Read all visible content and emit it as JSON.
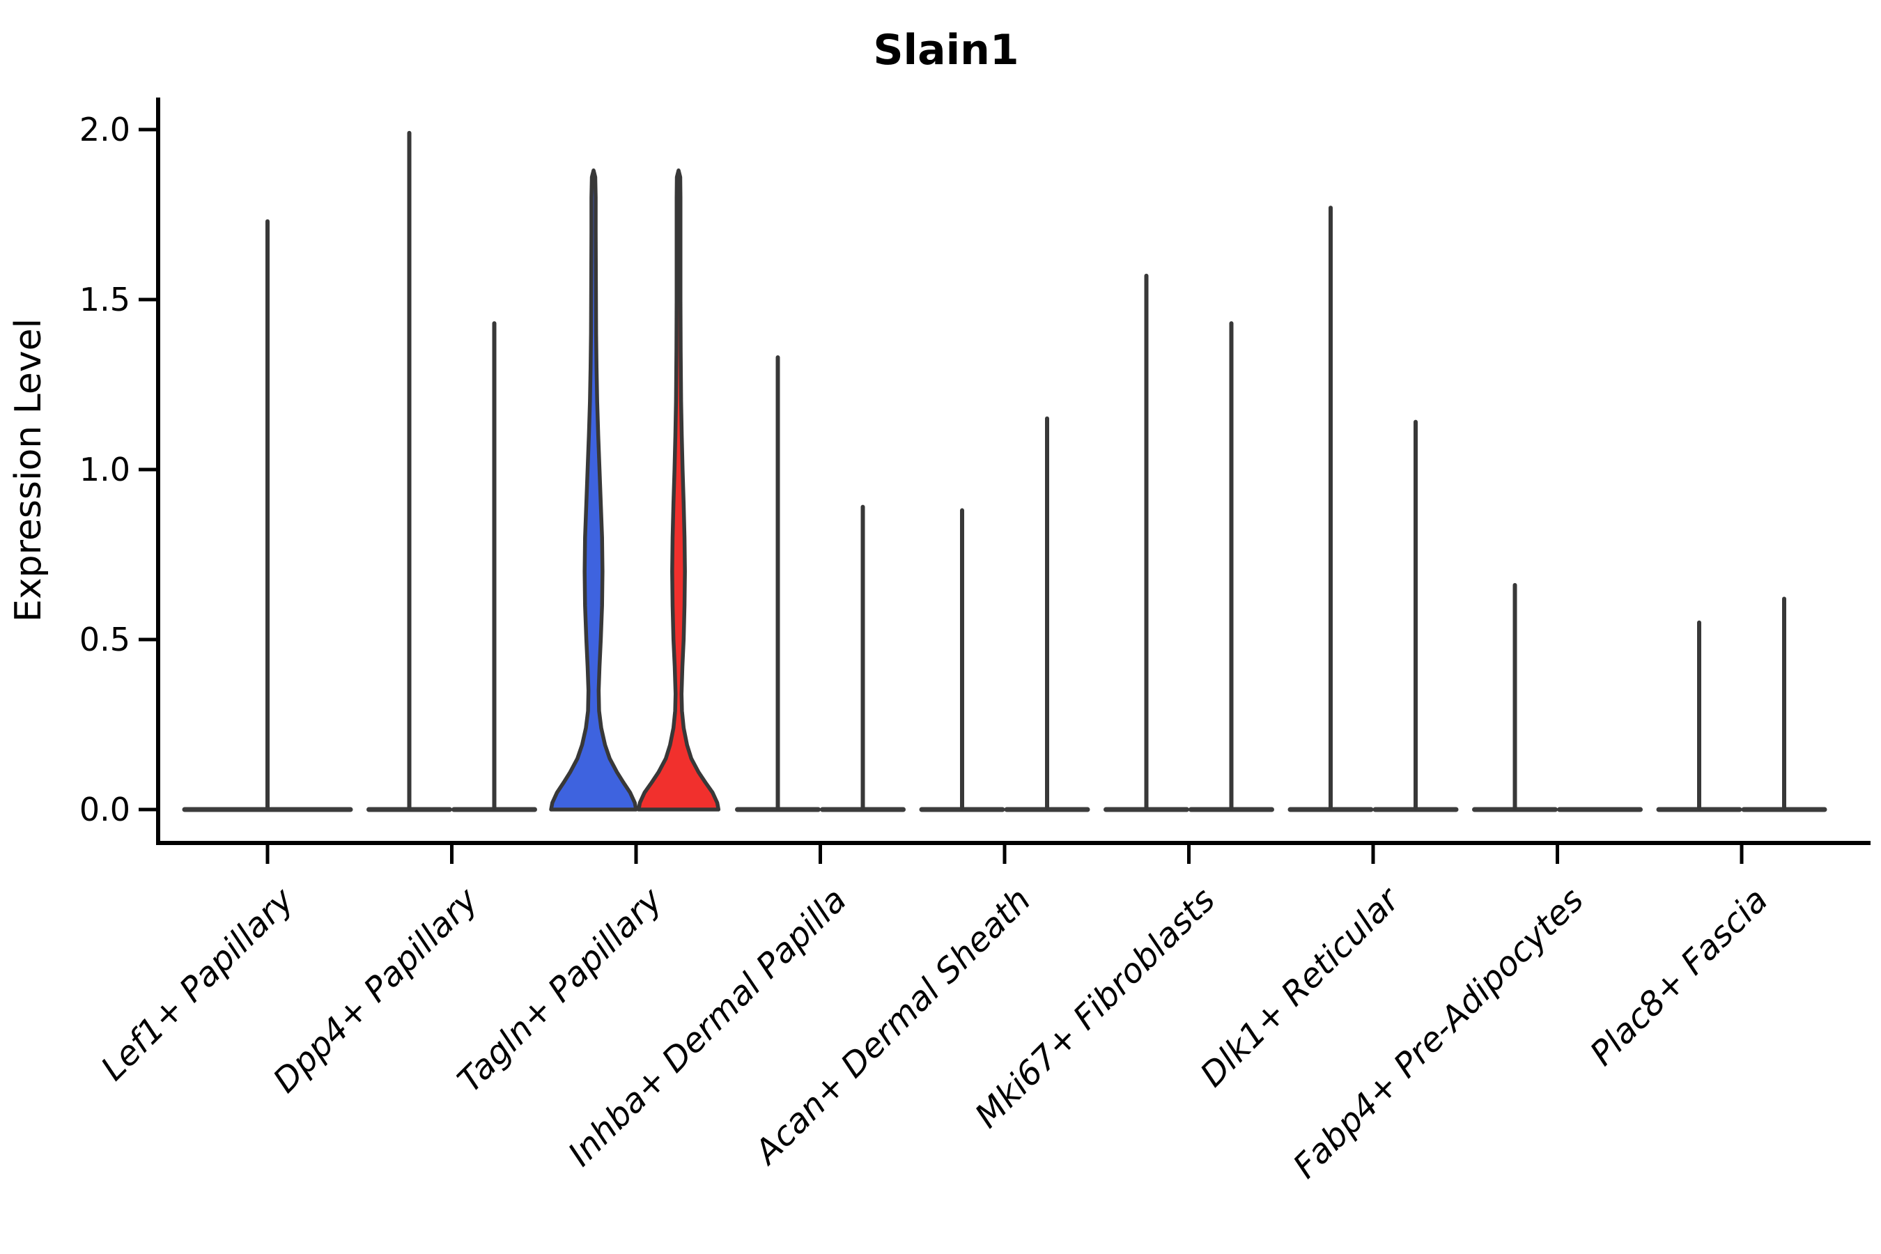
{
  "chart_data": {
    "type": "violin",
    "title": "Slain1",
    "ylabel": "Expression Level",
    "xlabel": "",
    "ylim": [
      0,
      2.05
    ],
    "grid": false,
    "legend_position": "none",
    "yticks": [
      {
        "label": "0.0",
        "value": 0.0
      },
      {
        "label": "0.5",
        "value": 0.5
      },
      {
        "label": "1.0",
        "value": 1.0
      },
      {
        "label": "1.5",
        "value": 1.5
      },
      {
        "label": "2.0",
        "value": 2.0
      }
    ],
    "categories": [
      {
        "label": "Lef1+ Papillary",
        "violins": [
          {
            "position": "full",
            "style": "flat",
            "group": "single",
            "max": 1.73
          }
        ]
      },
      {
        "label": "Dpp4+ Papillary",
        "violins": [
          {
            "position": "left",
            "style": "flat",
            "group": "blue",
            "max": 1.99
          },
          {
            "position": "right",
            "style": "flat",
            "group": "red",
            "max": 1.43
          }
        ]
      },
      {
        "label": "Tagln+ Papillary",
        "violins": [
          {
            "position": "left",
            "style": "filled",
            "group": "blue",
            "max": 1.88,
            "profile": "blue"
          },
          {
            "position": "right",
            "style": "filled",
            "group": "red",
            "max": 1.88,
            "profile": "red"
          }
        ]
      },
      {
        "label": "Inhba+ Dermal Papilla",
        "violins": [
          {
            "position": "left",
            "style": "flat",
            "group": "blue",
            "max": 1.33
          },
          {
            "position": "right",
            "style": "flat",
            "group": "red",
            "max": 0.89
          }
        ]
      },
      {
        "label": "Acan+ Dermal Sheath",
        "violins": [
          {
            "position": "left",
            "style": "flat",
            "group": "blue",
            "max": 0.88
          },
          {
            "position": "right",
            "style": "flat",
            "group": "red",
            "max": 1.15
          }
        ]
      },
      {
        "label": "Mki67+ Fibroblasts",
        "violins": [
          {
            "position": "left",
            "style": "flat",
            "group": "blue",
            "max": 1.57
          },
          {
            "position": "right",
            "style": "flat",
            "group": "red",
            "max": 1.43
          }
        ]
      },
      {
        "label": "Dlk1+ Reticular",
        "violins": [
          {
            "position": "left",
            "style": "flat",
            "group": "blue",
            "max": 1.77
          },
          {
            "position": "right",
            "style": "flat",
            "group": "red",
            "max": 1.14
          }
        ]
      },
      {
        "label": "Fabp4+ Pre-Adipocytes",
        "violins": [
          {
            "position": "left",
            "style": "flat",
            "group": "blue",
            "max": 0.66
          },
          {
            "position": "right",
            "style": "flat",
            "group": "red",
            "max": 0.0
          }
        ]
      },
      {
        "label": "Plac8+ Fascia",
        "violins": [
          {
            "position": "left",
            "style": "flat",
            "group": "blue",
            "max": 0.55
          },
          {
            "position": "right",
            "style": "flat",
            "group": "red",
            "max": 0.62
          }
        ]
      }
    ],
    "violin_profiles": {
      "blue": [
        [
          0,
          1.0
        ],
        [
          0.02,
          0.97
        ],
        [
          0.05,
          0.86
        ],
        [
          0.08,
          0.7
        ],
        [
          0.11,
          0.55
        ],
        [
          0.15,
          0.38
        ],
        [
          0.19,
          0.27
        ],
        [
          0.24,
          0.18
        ],
        [
          0.29,
          0.13
        ],
        [
          0.35,
          0.12
        ],
        [
          0.42,
          0.14
        ],
        [
          0.5,
          0.17
        ],
        [
          0.6,
          0.2
        ],
        [
          0.7,
          0.21
        ],
        [
          0.8,
          0.2
        ],
        [
          0.9,
          0.17
        ],
        [
          1.0,
          0.14
        ],
        [
          1.1,
          0.11
        ],
        [
          1.2,
          0.085
        ],
        [
          1.3,
          0.07
        ],
        [
          1.4,
          0.06
        ],
        [
          1.55,
          0.055
        ],
        [
          1.7,
          0.05
        ],
        [
          1.8,
          0.05
        ],
        [
          1.86,
          0.04
        ],
        [
          1.88,
          0.0
        ]
      ],
      "red": [
        [
          0,
          0.94
        ],
        [
          0.02,
          0.91
        ],
        [
          0.05,
          0.8
        ],
        [
          0.08,
          0.63
        ],
        [
          0.11,
          0.47
        ],
        [
          0.15,
          0.3
        ],
        [
          0.19,
          0.2
        ],
        [
          0.24,
          0.12
        ],
        [
          0.29,
          0.08
        ],
        [
          0.34,
          0.07
        ],
        [
          0.42,
          0.09
        ],
        [
          0.5,
          0.12
        ],
        [
          0.6,
          0.14
        ],
        [
          0.7,
          0.15
        ],
        [
          0.8,
          0.14
        ],
        [
          0.9,
          0.12
        ],
        [
          1.0,
          0.095
        ],
        [
          1.1,
          0.075
        ],
        [
          1.2,
          0.06
        ],
        [
          1.35,
          0.05
        ],
        [
          1.5,
          0.045
        ],
        [
          1.65,
          0.045
        ],
        [
          1.8,
          0.045
        ],
        [
          1.86,
          0.04
        ],
        [
          1.88,
          0.0
        ]
      ]
    },
    "colors": {
      "blue": "#3E63DF",
      "red": "#F1302D",
      "outline": "#383838",
      "baseline": "#3C3C3C",
      "axis": "#000000"
    }
  }
}
